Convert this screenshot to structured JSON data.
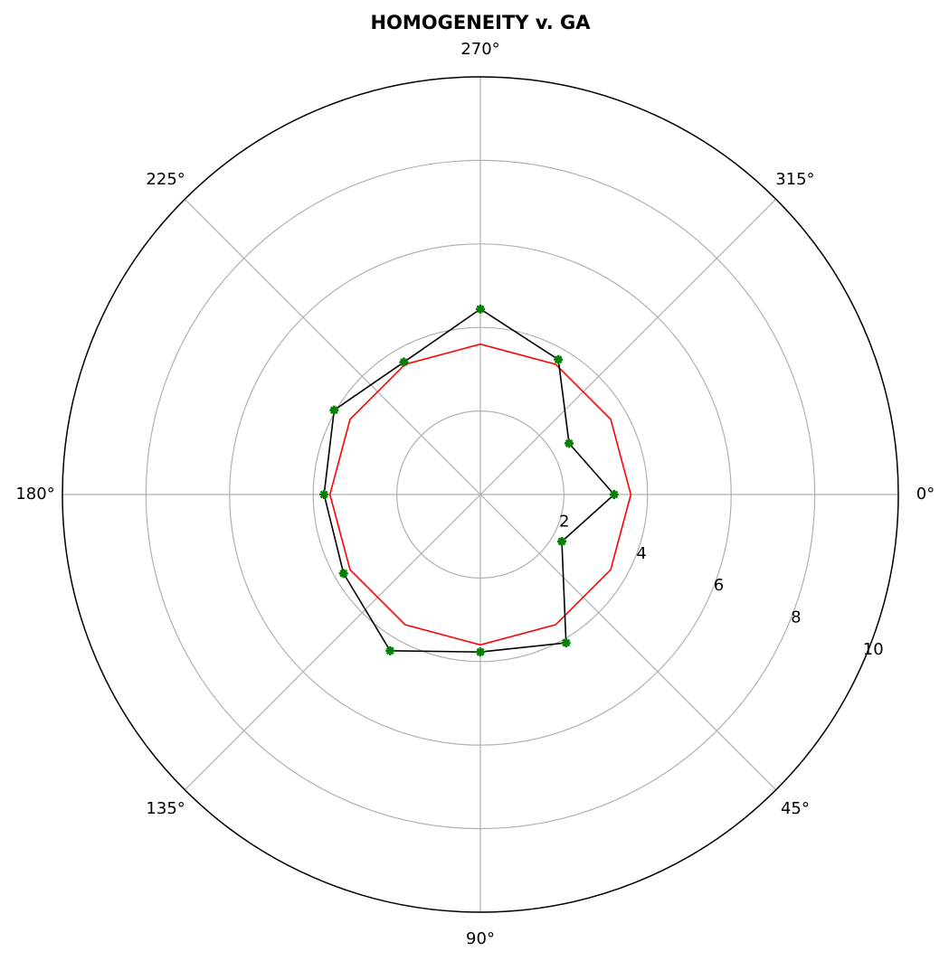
{
  "chart_data": {
    "type": "polar",
    "title": "HOMOGENEITY v. GA",
    "theta": [
      0,
      30,
      60,
      90,
      120,
      150,
      180,
      210,
      240,
      270,
      300,
      330
    ],
    "theta_direction": "clockwise",
    "series": [
      {
        "color": "#000000",
        "marker_color": "#008000",
        "marker": "star",
        "values": [
          3.2,
          2.25,
          4.1,
          3.77,
          4.32,
          3.78,
          3.74,
          4.04,
          3.66,
          4.44,
          3.73,
          2.45
        ]
      },
      {
        "color": "#ff0000",
        "values": [
          3.6,
          3.6,
          3.6,
          3.6,
          3.6,
          3.6,
          3.6,
          3.6,
          3.6,
          3.6,
          3.6,
          3.6
        ]
      }
    ],
    "rlim": [
      0,
      10
    ],
    "rticks": [
      2,
      4,
      6,
      8,
      10
    ],
    "thetaticks": [
      {
        "value": 0,
        "label": "0°"
      },
      {
        "value": 45,
        "label": "45°"
      },
      {
        "value": 90,
        "label": "90°"
      },
      {
        "value": 135,
        "label": "135°"
      },
      {
        "value": 180,
        "label": "180°"
      },
      {
        "value": 225,
        "label": "225°"
      },
      {
        "value": 270,
        "label": "270°"
      },
      {
        "value": 315,
        "label": "315°"
      }
    ],
    "grid": true
  }
}
